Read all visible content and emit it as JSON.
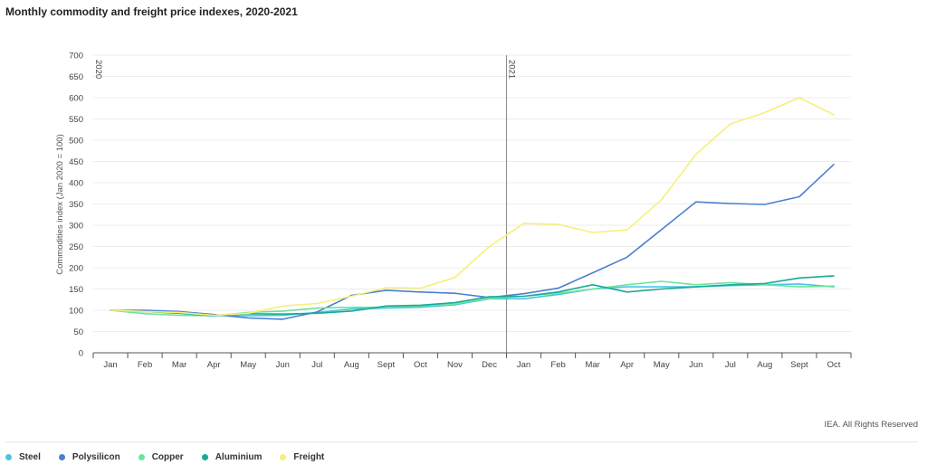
{
  "title": "Monthly commodity and freight price indexes, 2020-2021",
  "credit": "IEA. All Rights Reserved",
  "chart_data": {
    "type": "line",
    "title": "Monthly commodity and freight price indexes, 2020-2021",
    "ylabel": "Commodities index (Jan 2020 = 100)",
    "xlabel": "",
    "ylim": [
      0,
      700
    ],
    "yticks": [
      0,
      50,
      100,
      150,
      200,
      250,
      300,
      350,
      400,
      450,
      500,
      550,
      600,
      650,
      700
    ],
    "grid": true,
    "legend_position": "bottom-left",
    "categories": [
      "Jan",
      "Feb",
      "Mar",
      "Apr",
      "May",
      "Jun",
      "Jul",
      "Aug",
      "Sept",
      "Oct",
      "Nov",
      "Dec",
      "Jan",
      "Feb",
      "Mar",
      "Apr",
      "May",
      "Jun",
      "Jul",
      "Aug",
      "Sept",
      "Oct"
    ],
    "dividers": [
      {
        "label": "2020",
        "index": 0
      },
      {
        "label": "2021",
        "index": 12
      }
    ],
    "series": [
      {
        "name": "Steel",
        "color": "#4cc3e4",
        "values": [
          100,
          97,
          95,
          88,
          87,
          88,
          95,
          103,
          105,
          107,
          113,
          127,
          127,
          137,
          150,
          155,
          155,
          155,
          158,
          160,
          162,
          155
        ]
      },
      {
        "name": "Polysilicon",
        "color": "#4a7fd0",
        "values": [
          100,
          100,
          97,
          90,
          82,
          79,
          96,
          135,
          147,
          143,
          140,
          130,
          139,
          152,
          188,
          225,
          290,
          355,
          351,
          349,
          367,
          443
        ]
      },
      {
        "name": "Copper",
        "color": "#6ee39a",
        "values": [
          100,
          92,
          88,
          87,
          95,
          98,
          105,
          107,
          107,
          110,
          115,
          128,
          133,
          140,
          150,
          160,
          168,
          160,
          165,
          160,
          155,
          157
        ]
      },
      {
        "name": "Aluminium",
        "color": "#1aaa97",
        "values": [
          100,
          97,
          93,
          87,
          92,
          91,
          93,
          98,
          110,
          112,
          118,
          132,
          133,
          143,
          160,
          143,
          150,
          155,
          160,
          163,
          176,
          181
        ]
      },
      {
        "name": "Freight",
        "color": "#f7ef7a",
        "values": [
          100,
          97,
          95,
          88,
          93,
          110,
          116,
          133,
          153,
          152,
          177,
          250,
          304,
          302,
          283,
          289,
          360,
          467,
          538,
          565,
          600,
          560
        ]
      }
    ]
  }
}
